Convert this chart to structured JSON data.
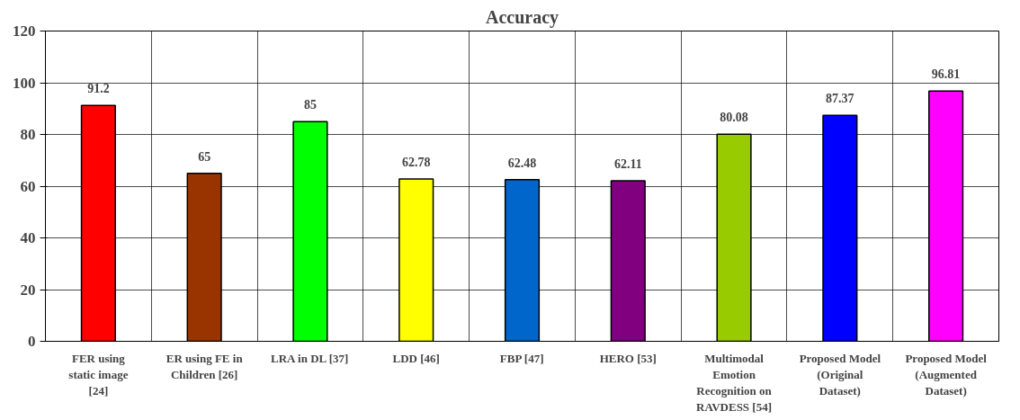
{
  "chart_data": {
    "type": "bar",
    "title": "Accuracy",
    "categories": [
      "FER using static image [24]",
      "ER using FE in Children [26]",
      "LRA in DL [37]",
      "LDD [46]",
      "FBP [47]",
      "HERO [53]",
      "Multimodal Emotion Recognition on RAVDESS [54]",
      "Proposed Model (Original Dataset)",
      "Proposed Model (Augmented Dataset)"
    ],
    "values": [
      91.2,
      65,
      85,
      62.78,
      62.48,
      62.11,
      80.08,
      87.37,
      96.81
    ],
    "colors": [
      "#ff0000",
      "#993300",
      "#00ff00",
      "#ffff00",
      "#0066cc",
      "#800080",
      "#99cc00",
      "#0000ff",
      "#ff00ff"
    ],
    "ylim": [
      0,
      120
    ],
    "yticks": [
      0,
      20,
      40,
      60,
      80,
      100,
      120
    ],
    "grid": true,
    "data_labels": true
  }
}
